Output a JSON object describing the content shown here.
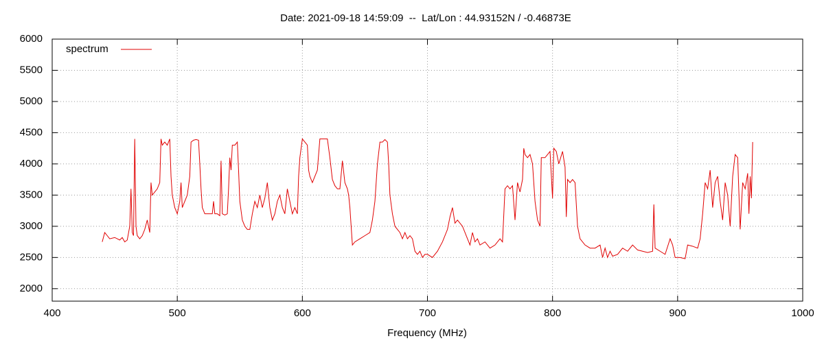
{
  "chart_data": {
    "type": "line",
    "title": "Date: 2021-09-18 14:59:09  --  Lat/Lon : 44.93152N / -0.46873E",
    "xlabel": "Frequency (MHz)",
    "xlim": [
      400,
      1000
    ],
    "xticks": [
      400,
      500,
      600,
      700,
      800,
      900,
      1000
    ],
    "ylim": [
      1800,
      6000
    ],
    "yticks": [
      2000,
      2500,
      3000,
      3500,
      4000,
      4500,
      5000,
      5500,
      6000
    ],
    "grid": true,
    "legend": "top-left",
    "x": [
      440,
      442,
      444,
      446,
      450,
      454,
      456,
      458,
      460,
      462,
      463,
      464,
      465,
      466,
      467,
      468,
      470,
      472,
      474,
      476,
      478,
      479,
      480,
      482,
      484,
      486,
      487,
      488,
      490,
      492,
      494,
      495,
      496,
      498,
      500,
      502,
      503,
      504,
      506,
      508,
      510,
      511,
      513,
      515,
      517,
      518,
      519,
      520,
      522,
      526,
      528,
      529,
      530,
      532,
      534,
      535,
      536,
      538,
      540,
      541,
      542,
      543,
      544,
      546,
      548,
      549,
      550,
      552,
      554,
      556,
      558,
      560,
      562,
      564,
      566,
      568,
      570,
      572,
      574,
      576,
      578,
      580,
      582,
      584,
      586,
      588,
      590,
      592,
      594,
      596,
      597,
      598,
      600,
      602,
      604,
      605,
      606,
      608,
      610,
      612,
      614,
      616,
      620,
      622,
      624,
      626,
      628,
      630,
      632,
      634,
      636,
      637,
      638,
      640,
      642,
      646,
      650,
      654,
      656,
      658,
      660,
      662,
      664,
      666,
      668,
      669,
      670,
      672,
      674,
      676,
      678,
      680,
      682,
      684,
      686,
      688,
      690,
      692,
      694,
      696,
      698,
      700,
      704,
      708,
      712,
      716,
      718,
      720,
      722,
      724,
      728,
      732,
      734,
      736,
      738,
      740,
      742,
      746,
      750,
      754,
      758,
      760,
      762,
      764,
      766,
      768,
      770,
      772,
      774,
      776,
      777,
      778,
      780,
      782,
      784,
      786,
      788,
      790,
      791,
      794,
      796,
      798,
      800,
      801,
      803,
      805,
      808,
      810,
      811,
      812,
      814,
      816,
      818,
      820,
      822,
      826,
      830,
      834,
      838,
      840,
      842,
      844,
      846,
      848,
      852,
      856,
      860,
      864,
      868,
      872,
      876,
      880,
      881,
      882,
      886,
      890,
      894,
      896,
      898,
      902,
      906,
      908,
      912,
      916,
      918,
      920,
      922,
      924,
      926,
      928,
      930,
      932,
      934,
      936,
      938,
      940,
      942,
      944,
      946,
      948,
      950,
      952,
      954,
      956,
      957,
      958,
      959,
      960
    ],
    "series": [
      {
        "name": "spectrum",
        "color": "#e00000",
        "values": [
          2750,
          2900,
          2850,
          2800,
          2820,
          2780,
          2820,
          2750,
          2780,
          3000,
          3600,
          2900,
          2850,
          4400,
          3000,
          2850,
          2800,
          2850,
          2950,
          3100,
          2900,
          3700,
          3500,
          3550,
          3600,
          3700,
          4400,
          4300,
          4350,
          4300,
          4400,
          3800,
          3500,
          3300,
          3200,
          3400,
          3700,
          3300,
          3400,
          3500,
          3800,
          4350,
          4380,
          4390,
          4380,
          4000,
          3600,
          3300,
          3200,
          3200,
          3200,
          3400,
          3200,
          3200,
          3170,
          4050,
          3200,
          3180,
          3200,
          3600,
          4100,
          3900,
          4300,
          4300,
          4350,
          3900,
          3400,
          3100,
          3000,
          2950,
          2950,
          3200,
          3400,
          3300,
          3500,
          3300,
          3450,
          3700,
          3300,
          3100,
          3200,
          3400,
          3500,
          3300,
          3200,
          3600,
          3400,
          3200,
          3300,
          3200,
          3800,
          4100,
          4400,
          4350,
          4300,
          3900,
          3800,
          3700,
          3800,
          3900,
          4400,
          4400,
          4400,
          4100,
          3750,
          3650,
          3600,
          3600,
          4050,
          3700,
          3600,
          3500,
          3300,
          2700,
          2750,
          2800,
          2850,
          2900,
          3100,
          3400,
          4000,
          4350,
          4350,
          4390,
          4350,
          4000,
          3500,
          3200,
          3000,
          2950,
          2900,
          2800,
          2900,
          2800,
          2850,
          2800,
          2600,
          2550,
          2600,
          2500,
          2550,
          2550,
          2500,
          2600,
          2750,
          2950,
          3150,
          3300,
          3050,
          3100,
          3000,
          2800,
          2700,
          2900,
          2750,
          2800,
          2700,
          2750,
          2650,
          2700,
          2800,
          2750,
          3600,
          3650,
          3600,
          3650,
          3100,
          3700,
          3550,
          3750,
          4250,
          4150,
          4100,
          4150,
          4000,
          3400,
          3100,
          3000,
          4100,
          4100,
          4150,
          4200,
          3450,
          4250,
          4200,
          4000,
          4200,
          3950,
          3150,
          3750,
          3700,
          3750,
          3700,
          3000,
          2800,
          2700,
          2650,
          2650,
          2700,
          2500,
          2650,
          2500,
          2600,
          2520,
          2550,
          2650,
          2600,
          2700,
          2620,
          2600,
          2580,
          2600,
          3350,
          2650,
          2600,
          2550,
          2800,
          2700,
          2500,
          2500,
          2480,
          2700,
          2680,
          2650,
          2800,
          3200,
          3700,
          3600,
          3900,
          3300,
          3700,
          3800,
          3400,
          3100,
          3700,
          3500,
          3000,
          3800,
          4150,
          4100,
          2950,
          3700,
          3600,
          3850,
          3200,
          3800,
          3450,
          4350
        ]
      }
    ]
  }
}
